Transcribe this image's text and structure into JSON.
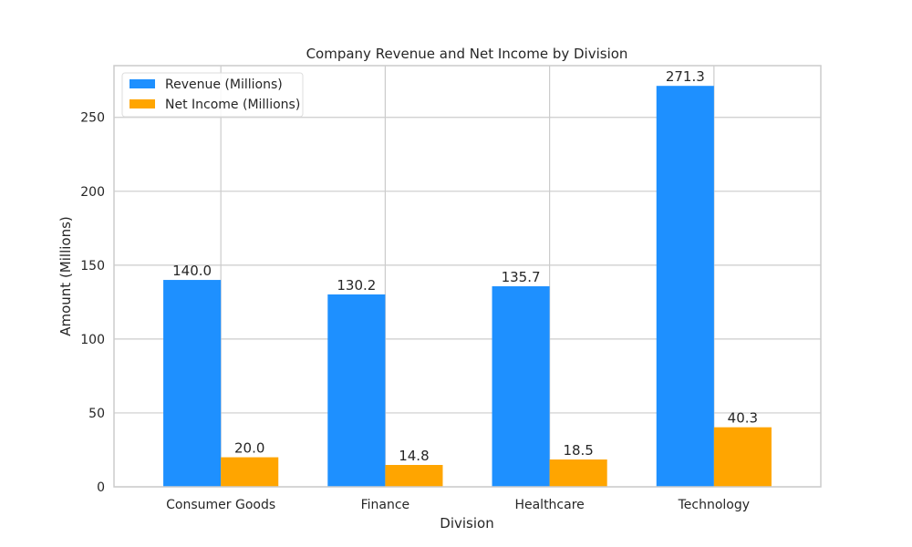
{
  "chart_data": {
    "type": "bar",
    "title": "Company Revenue and Net Income by Division",
    "xlabel": "Division",
    "ylabel": "Amount (Millions)",
    "categories": [
      "Consumer Goods",
      "Finance",
      "Healthcare",
      "Technology"
    ],
    "series": [
      {
        "name": "Revenue (Millions)",
        "color": "#1E90FF",
        "values": [
          140.0,
          130.2,
          135.7,
          271.3
        ]
      },
      {
        "name": "Net Income (Millions)",
        "color": "#FFA500",
        "values": [
          20.0,
          14.8,
          18.5,
          40.3
        ]
      }
    ],
    "data_labels": [
      [
        "140.0",
        "130.2",
        "135.7",
        "271.3"
      ],
      [
        "20.0",
        "14.8",
        "18.5",
        "40.3"
      ]
    ],
    "ylim": [
      0,
      285
    ],
    "yticks": [
      0,
      50,
      100,
      150,
      200,
      250
    ],
    "ytick_labels": [
      "0",
      "50",
      "100",
      "150",
      "200",
      "250"
    ],
    "grid": true,
    "legend_position": "upper-left"
  }
}
